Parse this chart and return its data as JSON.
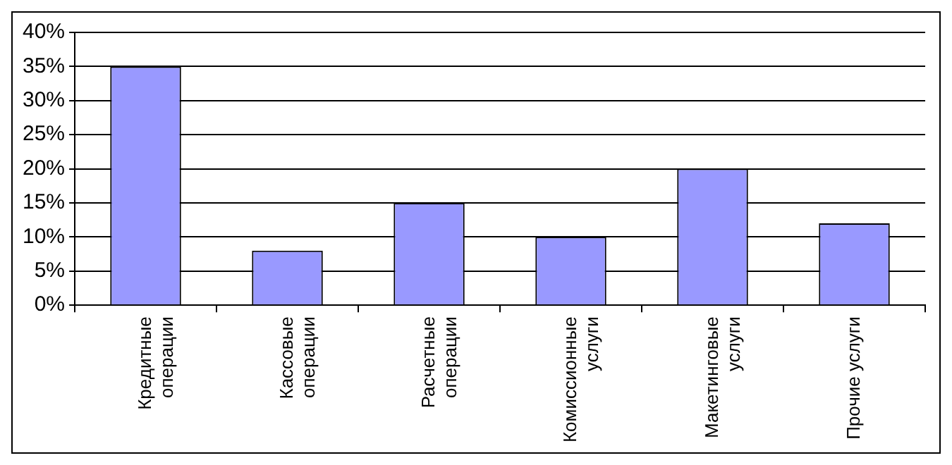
{
  "chart_data": {
    "type": "bar",
    "categories": [
      "Кредитные\nоперации",
      "Кассовые\nоперации",
      "Расчетные\nоперации",
      "Комиссионные\nуслуги",
      "Макетинговые\nуслуги",
      "Прочие услуги"
    ],
    "values": [
      35,
      8,
      15,
      10,
      20,
      12
    ],
    "color": "#9999ff",
    "ylim": [
      0,
      40
    ],
    "yticks": [
      {
        "value": 0,
        "label": "0%"
      },
      {
        "value": 5,
        "label": "5%"
      },
      {
        "value": 10,
        "label": "10%"
      },
      {
        "value": 15,
        "label": "15%"
      },
      {
        "value": 20,
        "label": "20%"
      },
      {
        "value": 25,
        "label": "25%"
      },
      {
        "value": 30,
        "label": "30%"
      },
      {
        "value": 35,
        "label": "35%"
      },
      {
        "value": 40,
        "label": "40%"
      }
    ],
    "grid": "y",
    "legend": false
  }
}
